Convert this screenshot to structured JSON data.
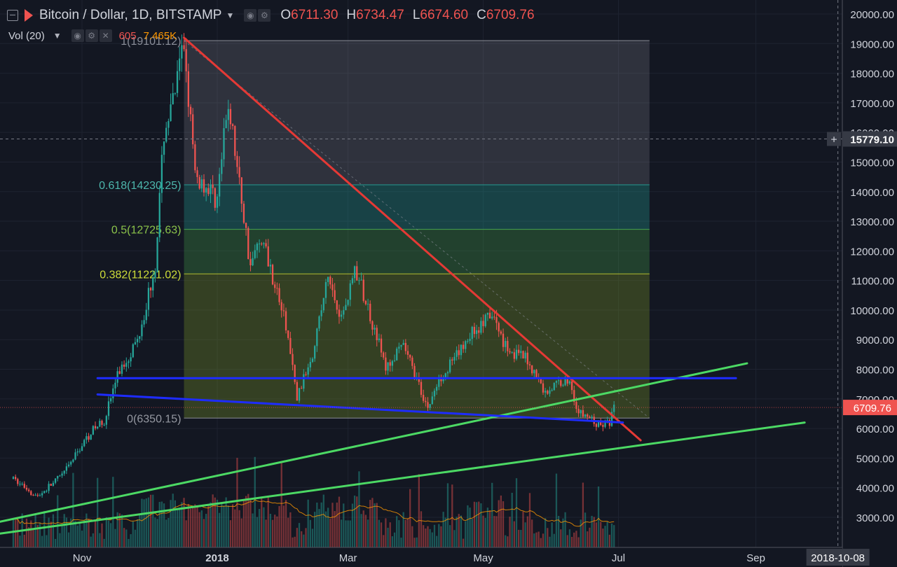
{
  "legend": {
    "symbol": "Bitcoin / Dollar, 1D, BITSTAMP",
    "open_label": "O",
    "open": "6711.30",
    "high_label": "H",
    "high": "6734.47",
    "low_label": "L",
    "low": "6674.60",
    "close_label": "C",
    "close": "6709.76",
    "volume_indicator": "Vol (20)",
    "volume_value": "605",
    "volume_ma": "7.465K",
    "icons": [
      "collapse-icon",
      "bitstamp-flag-icon",
      "dropdown-caret-icon",
      "eye-icon",
      "gear-icon",
      "close-icon"
    ]
  },
  "colors": {
    "background": "#131722",
    "up": "#26a69a",
    "down": "#ef5350",
    "trend_red": "#e53935",
    "trend_green": "#4cd964",
    "support_blue": "#1e2cff"
  },
  "price_axis": {
    "ticks": [
      "20000.00",
      "19000.00",
      "18000.00",
      "17000.00",
      "16000.00",
      "15000.00",
      "14000.00",
      "13000.00",
      "12000.00",
      "11000.00",
      "10000.00",
      "9000.00",
      "8000.00",
      "7000.00",
      "6000.00",
      "5000.00",
      "4000.00",
      "3000.00"
    ],
    "crosshair_label": "15779.10",
    "last_price_label": "6709.76"
  },
  "time_axis": {
    "ticks": [
      "Nov",
      "2018",
      "Mar",
      "May",
      "Jul",
      "Sep"
    ],
    "crosshair_label": "2018-10-08"
  },
  "fibonacci": {
    "levels": [
      {
        "label": "1(19101.12)",
        "ratio": 1,
        "price": 19101.12
      },
      {
        "label": "0.618(14230.25)",
        "ratio": 0.618,
        "price": 14230.25
      },
      {
        "label": "0.5(12725.63)",
        "ratio": 0.5,
        "price": 12725.63
      },
      {
        "label": "0.382(11221.02)",
        "ratio": 0.382,
        "price": 11221.02
      },
      {
        "label": "0(6350.15)",
        "ratio": 0,
        "price": 6350.15
      }
    ],
    "from_date": "2017-12-17",
    "to_date": "2018-07-15"
  },
  "chart_data": {
    "type": "candlestick",
    "title": "Bitcoin / Dollar, 1D, BITSTAMP",
    "x_range": [
      "2017-09-25",
      "2018-10-10"
    ],
    "y_range": [
      2100,
      20400
    ],
    "key_prices": [
      {
        "date": "2017-10-01",
        "price": 4300
      },
      {
        "date": "2017-10-12",
        "price": 3700
      },
      {
        "date": "2017-10-24",
        "price": 4500
      },
      {
        "date": "2017-11-04",
        "price": 5800
      },
      {
        "date": "2017-11-11",
        "price": 6300
      },
      {
        "date": "2017-11-17",
        "price": 7800
      },
      {
        "date": "2017-11-26",
        "price": 9000
      },
      {
        "date": "2017-12-04",
        "price": 11500
      },
      {
        "date": "2017-12-08",
        "price": 16000
      },
      {
        "date": "2017-12-12",
        "price": 17000
      },
      {
        "date": "2017-12-17",
        "price": 19000
      },
      {
        "date": "2017-12-22",
        "price": 14500
      },
      {
        "date": "2018-01-01",
        "price": 13800
      },
      {
        "date": "2018-01-06",
        "price": 17000
      },
      {
        "date": "2018-01-16",
        "price": 11500
      },
      {
        "date": "2018-01-21",
        "price": 12500
      },
      {
        "date": "2018-02-01",
        "price": 9500
      },
      {
        "date": "2018-02-06",
        "price": 7000
      },
      {
        "date": "2018-02-13",
        "price": 8600
      },
      {
        "date": "2018-02-20",
        "price": 11100
      },
      {
        "date": "2018-02-26",
        "price": 9700
      },
      {
        "date": "2018-03-04",
        "price": 11400
      },
      {
        "date": "2018-03-13",
        "price": 9400
      },
      {
        "date": "2018-03-18",
        "price": 8000
      },
      {
        "date": "2018-03-26",
        "price": 8800
      },
      {
        "date": "2018-04-06",
        "price": 6700
      },
      {
        "date": "2018-04-12",
        "price": 7800
      },
      {
        "date": "2018-04-19",
        "price": 8400
      },
      {
        "date": "2018-04-25",
        "price": 9200
      },
      {
        "date": "2018-05-05",
        "price": 9800
      },
      {
        "date": "2018-05-12",
        "price": 8700
      },
      {
        "date": "2018-05-21",
        "price": 8300
      },
      {
        "date": "2018-05-29",
        "price": 7200
      },
      {
        "date": "2018-06-05",
        "price": 7600
      },
      {
        "date": "2018-06-09",
        "price": 7600
      },
      {
        "date": "2018-06-13",
        "price": 6500
      },
      {
        "date": "2018-06-17",
        "price": 6400
      },
      {
        "date": "2018-06-22",
        "price": 6100
      },
      {
        "date": "2018-06-27",
        "price": 6200
      },
      {
        "date": "2018-06-29",
        "price": 6710
      }
    ],
    "trend_lines": [
      {
        "name": "descending-resistance",
        "color": "#e53935",
        "start": {
          "date": "2017-12-17",
          "price": 19200
        },
        "end": {
          "date": "2018-07-11",
          "price": 5600
        }
      },
      {
        "name": "upper-ascending-support",
        "color": "#4cd964",
        "start": {
          "date": "2017-09-25",
          "price": 2850
        },
        "end": {
          "date": "2018-08-28",
          "price": 8200
        }
      },
      {
        "name": "lower-ascending-support",
        "color": "#4cd964",
        "start": {
          "date": "2017-09-25",
          "price": 2450
        },
        "end": {
          "date": "2018-09-23",
          "price": 6200
        }
      },
      {
        "name": "horizontal-support",
        "color": "#1e2cff",
        "start": {
          "date": "2017-11-08",
          "price": 7700
        },
        "end": {
          "date": "2018-08-23",
          "price": 7700
        }
      },
      {
        "name": "falling-support",
        "color": "#1e2cff",
        "start": {
          "date": "2017-11-08",
          "price": 7150
        },
        "end": {
          "date": "2018-07-03",
          "price": 6200
        }
      }
    ]
  }
}
